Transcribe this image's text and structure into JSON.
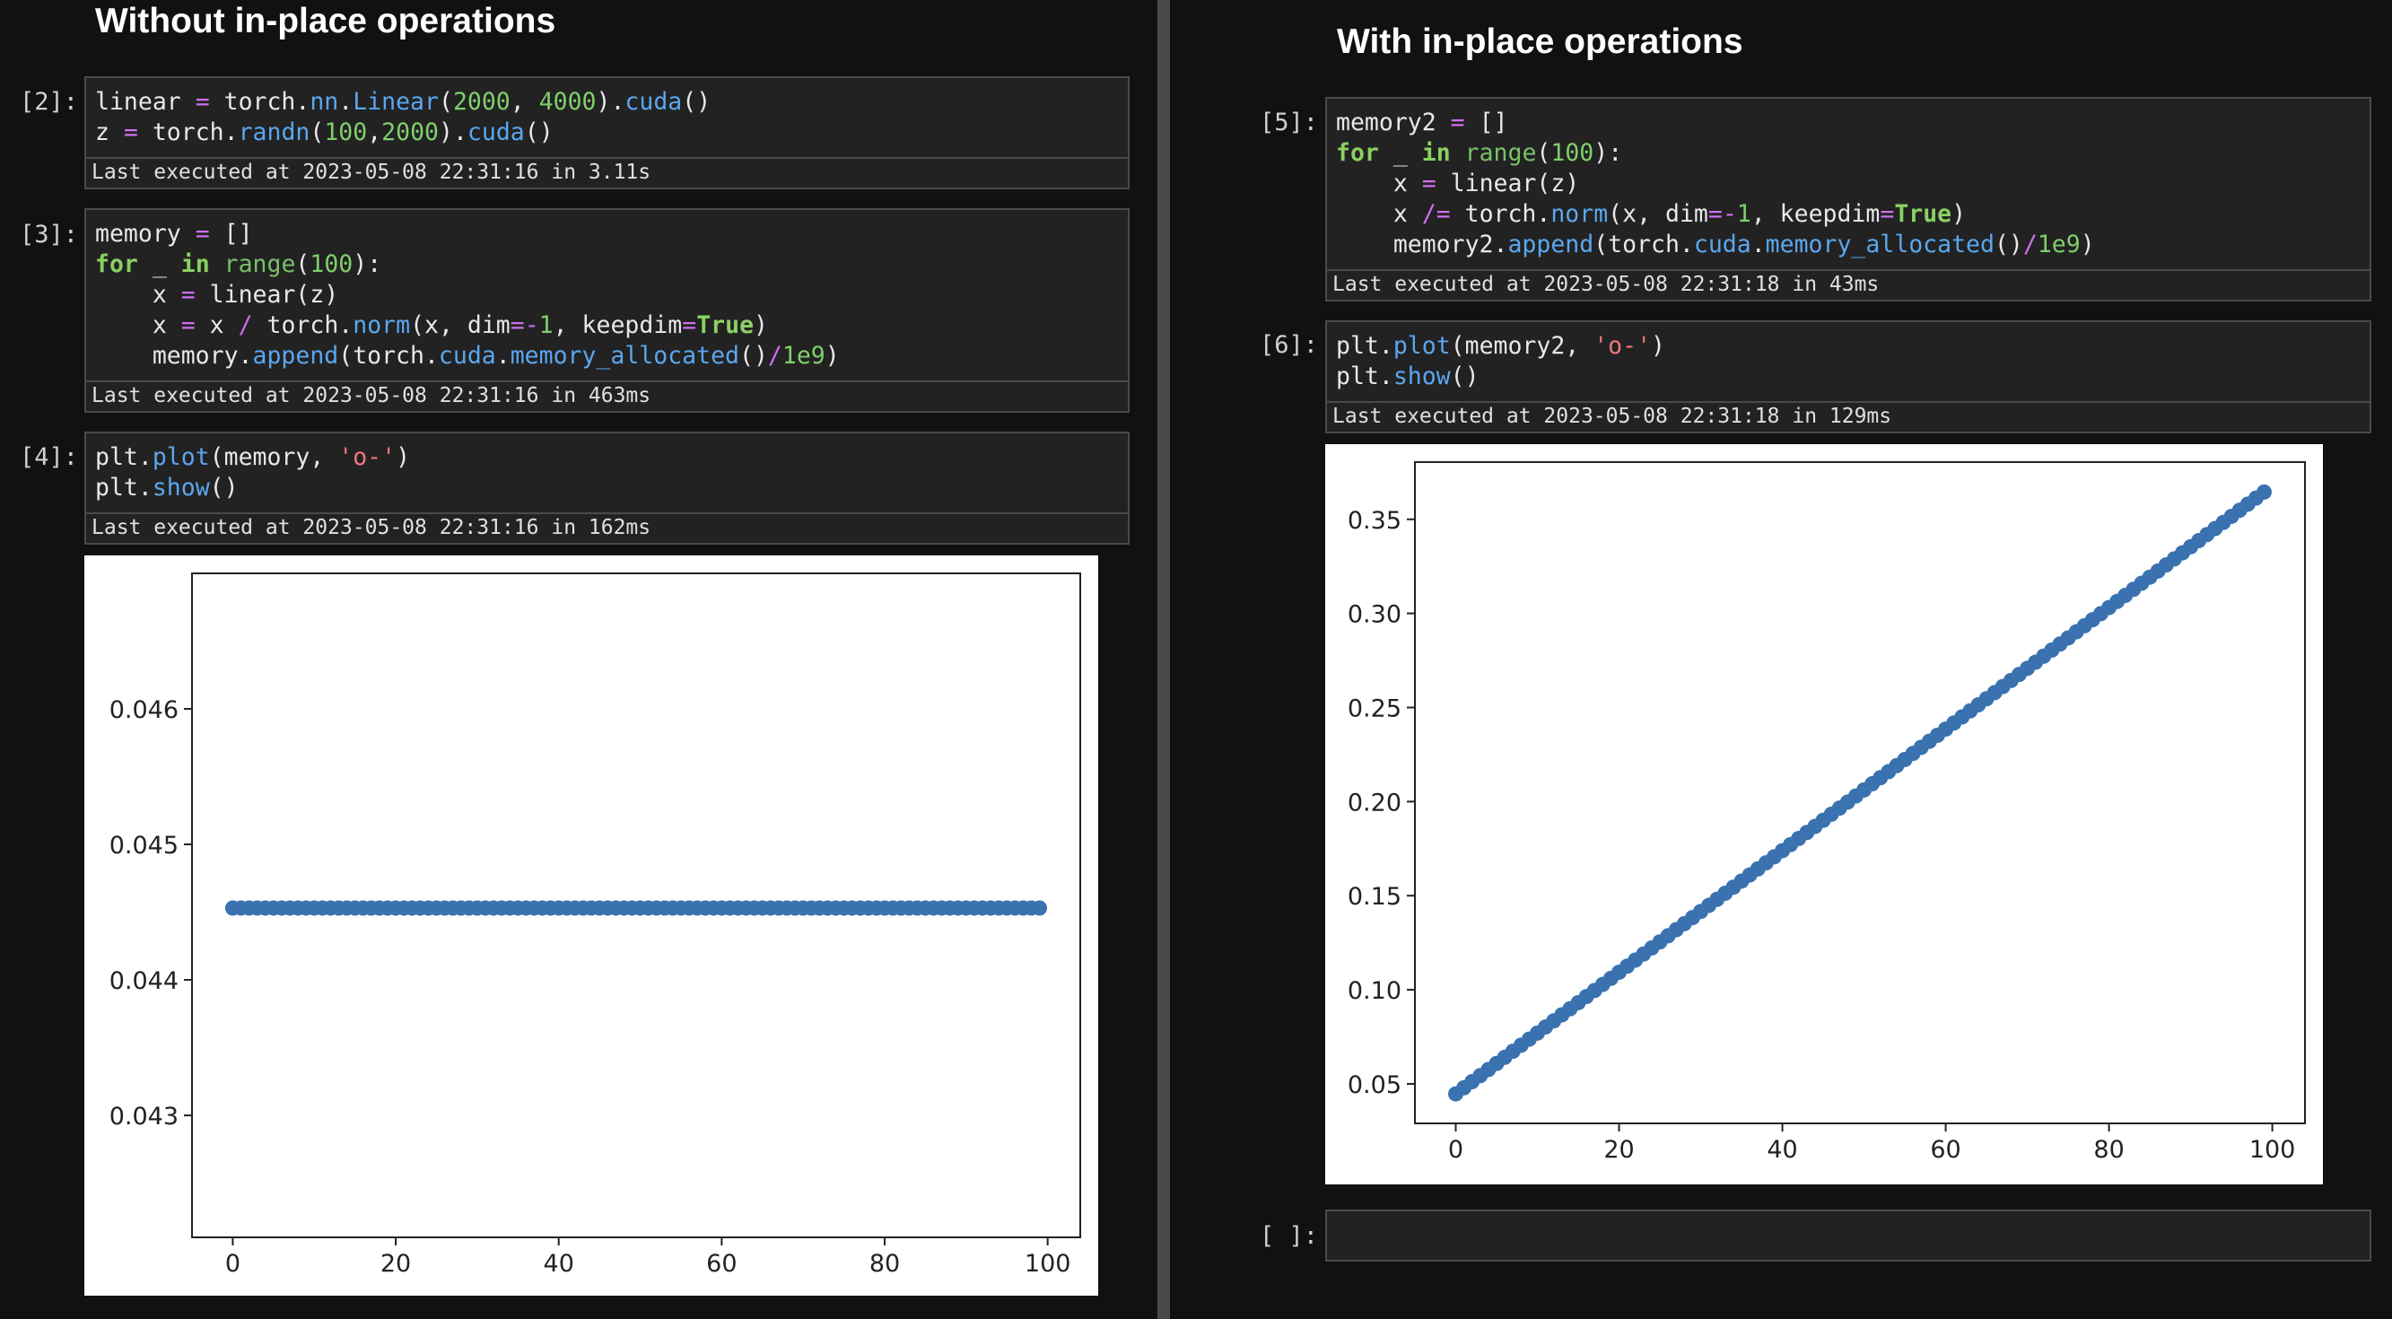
{
  "left": {
    "title": "Without in-place operations",
    "cells": [
      {
        "prompt": "[2]:",
        "code_lines": [
          [
            [
              "linear ",
              ""
            ],
            [
              "=",
              "op"
            ],
            [
              " torch.",
              ""
            ],
            [
              "nn",
              "fn"
            ],
            [
              ".",
              ""
            ],
            [
              "Linear",
              "fn"
            ],
            [
              "(",
              ""
            ],
            [
              "2000",
              "num"
            ],
            [
              ", ",
              ""
            ],
            [
              "4000",
              "num"
            ],
            [
              ").",
              ""
            ],
            [
              "cuda",
              "fn"
            ],
            [
              "()",
              ""
            ]
          ],
          [
            [
              "z ",
              ""
            ],
            [
              "=",
              "op"
            ],
            [
              " torch.",
              ""
            ],
            [
              "randn",
              "fn"
            ],
            [
              "(",
              ""
            ],
            [
              "100",
              "num"
            ],
            [
              ",",
              ""
            ],
            [
              "2000",
              "num"
            ],
            [
              ").",
              ""
            ],
            [
              "cuda",
              "fn"
            ],
            [
              "()",
              ""
            ]
          ]
        ],
        "status": "Last executed at 2023-05-08 22:31:16 in 3.11s"
      },
      {
        "prompt": "[3]:",
        "code_lines": [
          [
            [
              "memory ",
              ""
            ],
            [
              "=",
              "op"
            ],
            [
              " []",
              ""
            ]
          ],
          [
            [
              "for",
              "kw"
            ],
            [
              " _ ",
              ""
            ],
            [
              "in",
              "kw"
            ],
            [
              " ",
              ""
            ],
            [
              "range",
              "bi"
            ],
            [
              "(",
              ""
            ],
            [
              "100",
              "num"
            ],
            [
              "):",
              ""
            ]
          ],
          [
            [
              "    x ",
              ""
            ],
            [
              "=",
              "op"
            ],
            [
              " linear(z)",
              ""
            ]
          ],
          [
            [
              "    x ",
              ""
            ],
            [
              "=",
              "op"
            ],
            [
              " x ",
              ""
            ],
            [
              "/",
              "op"
            ],
            [
              " torch.",
              ""
            ],
            [
              "norm",
              "fn"
            ],
            [
              "(x, dim",
              ""
            ],
            [
              "=-",
              "op"
            ],
            [
              "1",
              "num"
            ],
            [
              ", keepdim",
              ""
            ],
            [
              "=",
              "op"
            ],
            [
              "True",
              "kw"
            ],
            [
              ")",
              ""
            ]
          ],
          [
            [
              "    memory.",
              ""
            ],
            [
              "append",
              "fn"
            ],
            [
              "(torch.",
              ""
            ],
            [
              "cuda",
              "fn"
            ],
            [
              ".",
              ""
            ],
            [
              "memory_allocated",
              "fn"
            ],
            [
              "()",
              ""
            ],
            [
              "/",
              "op"
            ],
            [
              "1e9",
              "num"
            ],
            [
              ")",
              ""
            ]
          ]
        ],
        "status": "Last executed at 2023-05-08 22:31:16 in 463ms"
      },
      {
        "prompt": "[4]:",
        "code_lines": [
          [
            [
              "plt.",
              ""
            ],
            [
              "plot",
              "fn"
            ],
            [
              "(memory, ",
              ""
            ],
            [
              "'o-'",
              "str"
            ],
            [
              ")",
              ""
            ]
          ],
          [
            [
              "plt.",
              ""
            ],
            [
              "show",
              "fn"
            ],
            [
              "()",
              ""
            ]
          ]
        ],
        "status": "Last executed at 2023-05-08 22:31:16 in 162ms"
      }
    ]
  },
  "right": {
    "title": "With in-place operations",
    "cells": [
      {
        "prompt": "[5]:",
        "code_lines": [
          [
            [
              "memory2 ",
              ""
            ],
            [
              "=",
              "op"
            ],
            [
              " []",
              ""
            ]
          ],
          [
            [
              "for",
              "kw"
            ],
            [
              " _ ",
              ""
            ],
            [
              "in",
              "kw"
            ],
            [
              " ",
              ""
            ],
            [
              "range",
              "bi"
            ],
            [
              "(",
              ""
            ],
            [
              "100",
              "num"
            ],
            [
              "):",
              ""
            ]
          ],
          [
            [
              "    x ",
              ""
            ],
            [
              "=",
              "op"
            ],
            [
              " linear(z)",
              ""
            ]
          ],
          [
            [
              "    x ",
              ""
            ],
            [
              "/=",
              "op"
            ],
            [
              " torch.",
              ""
            ],
            [
              "norm",
              "fn"
            ],
            [
              "(x, dim",
              ""
            ],
            [
              "=-",
              "op"
            ],
            [
              "1",
              "num"
            ],
            [
              ", keepdim",
              ""
            ],
            [
              "=",
              "op"
            ],
            [
              "True",
              "kw"
            ],
            [
              ")",
              ""
            ]
          ],
          [
            [
              "    memory2.",
              ""
            ],
            [
              "append",
              "fn"
            ],
            [
              "(torch.",
              ""
            ],
            [
              "cuda",
              "fn"
            ],
            [
              ".",
              ""
            ],
            [
              "memory_allocated",
              "fn"
            ],
            [
              "()",
              ""
            ],
            [
              "/",
              "op"
            ],
            [
              "1e9",
              "num"
            ],
            [
              ")",
              ""
            ]
          ]
        ],
        "status": "Last executed at 2023-05-08 22:31:18 in 43ms"
      },
      {
        "prompt": "[6]:",
        "code_lines": [
          [
            [
              "plt.",
              ""
            ],
            [
              "plot",
              "fn"
            ],
            [
              "(memory2, ",
              ""
            ],
            [
              "'o-'",
              "str"
            ],
            [
              ")",
              ""
            ]
          ],
          [
            [
              "plt.",
              ""
            ],
            [
              "show",
              "fn"
            ],
            [
              "()",
              ""
            ]
          ]
        ],
        "status": "Last executed at 2023-05-08 22:31:18 in 129ms"
      },
      {
        "prompt": "[ ]:",
        "code_lines": [],
        "status": ""
      }
    ]
  },
  "colors": {
    "background": "#111111",
    "cell_bg": "#222222",
    "divider": "#4a4a4a",
    "marker": "#3a72b0"
  },
  "chart_data": [
    {
      "type": "line",
      "marker": "o",
      "x_start": 0,
      "x_end": 99,
      "y_start": 0.04453,
      "y_end": 0.04453,
      "xlim": [
        -5,
        104
      ],
      "ylim": [
        0.0421,
        0.047
      ],
      "xticks": [
        "0",
        "20",
        "40",
        "60",
        "80",
        "100"
      ],
      "yticks": [
        "0.043",
        "0.044",
        "0.045",
        "0.046"
      ],
      "title": "",
      "xlabel": "",
      "ylabel": ""
    },
    {
      "type": "line",
      "marker": "o",
      "x_start": 0,
      "x_end": 99,
      "y_start": 0.0447,
      "y_end": 0.3645,
      "xlim": [
        -5,
        104
      ],
      "ylim": [
        0.029,
        0.3804
      ],
      "xticks": [
        "0",
        "20",
        "40",
        "60",
        "80",
        "100"
      ],
      "yticks": [
        "0.05",
        "0.10",
        "0.15",
        "0.20",
        "0.25",
        "0.30",
        "0.35"
      ],
      "title": "",
      "xlabel": "",
      "ylabel": ""
    }
  ]
}
